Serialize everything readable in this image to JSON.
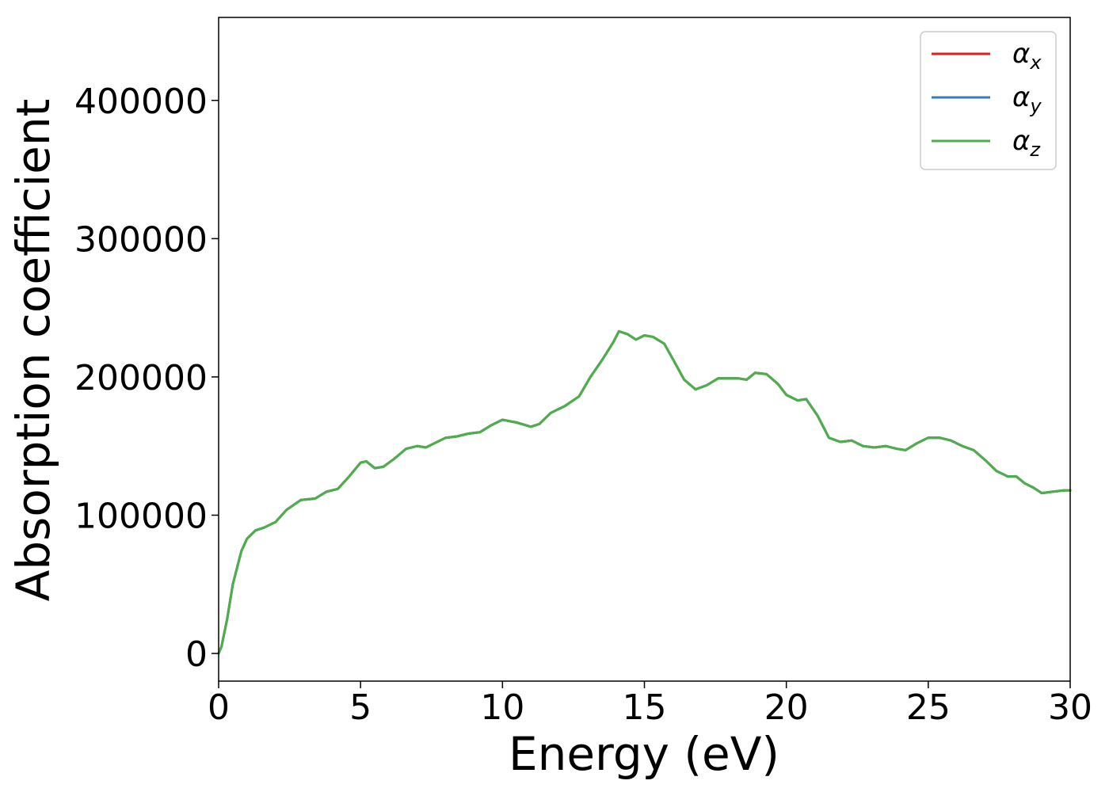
{
  "chart_data": {
    "type": "line",
    "title": "",
    "xlabel": "Energy (eV)",
    "ylabel": "Absorption coefficient",
    "xlim": [
      0,
      30
    ],
    "ylim": [
      -20000,
      460000
    ],
    "xticks": [
      0,
      5,
      10,
      15,
      20,
      25,
      30
    ],
    "xtick_labels": [
      "0",
      "5",
      "10",
      "15",
      "20",
      "25",
      "30"
    ],
    "yticks": [
      0,
      100000,
      200000,
      300000,
      400000
    ],
    "ytick_labels": [
      "0",
      "100000",
      "200000",
      "300000",
      "400000"
    ],
    "grid": false,
    "legend": {
      "position": "top-right"
    },
    "series": [
      {
        "name": "αx",
        "symbol": "α",
        "subscript": "x",
        "color": "#e41a1c"
      },
      {
        "name": "αy",
        "symbol": "α",
        "subscript": "y",
        "color": "#377eb8"
      },
      {
        "name": "αz",
        "symbol": "α",
        "subscript": "z",
        "color": "#4daf4a"
      }
    ],
    "x": [
      0,
      0.1,
      0.3,
      0.5,
      0.8,
      1.0,
      1.3,
      1.6,
      2.0,
      2.4,
      2.9,
      3.4,
      3.8,
      4.2,
      4.6,
      5.0,
      5.2,
      5.5,
      5.8,
      6.2,
      6.6,
      7.0,
      7.3,
      7.6,
      8.0,
      8.4,
      8.8,
      9.2,
      9.6,
      10.0,
      10.5,
      11.0,
      11.3,
      11.7,
      12.2,
      12.7,
      13.1,
      13.5,
      13.9,
      14.1,
      14.4,
      14.7,
      15.0,
      15.3,
      15.7,
      16.0,
      16.4,
      16.8,
      17.2,
      17.6,
      18.0,
      18.3,
      18.6,
      18.9,
      19.3,
      19.7,
      20.0,
      20.4,
      20.7,
      21.1,
      21.5,
      21.9,
      22.3,
      22.7,
      23.1,
      23.5,
      23.9,
      24.2,
      24.6,
      25.0,
      25.4,
      25.8,
      26.2,
      26.6,
      27.0,
      27.4,
      27.8,
      28.1,
      28.4,
      28.7,
      29.0,
      29.4,
      29.8,
      30.0
    ],
    "y": [
      0,
      5000,
      25000,
      50000,
      74000,
      83000,
      89000,
      91000,
      95000,
      104000,
      111000,
      112000,
      117000,
      119000,
      128000,
      138000,
      139000,
      134000,
      135000,
      141000,
      148000,
      150000,
      149000,
      152000,
      156000,
      157000,
      159000,
      160000,
      165000,
      169000,
      167000,
      164000,
      166000,
      174000,
      179000,
      186000,
      200000,
      212000,
      225000,
      233000,
      231000,
      227000,
      230000,
      229000,
      224000,
      213000,
      198000,
      191000,
      194000,
      199000,
      199000,
      199000,
      198000,
      203000,
      202000,
      195000,
      187000,
      183000,
      184000,
      172000,
      156000,
      153000,
      154000,
      150000,
      149000,
      150000,
      148000,
      147000,
      152000,
      156000,
      156000,
      154000,
      150000,
      147000,
      140000,
      132000,
      128000,
      128000,
      123000,
      120000,
      116000,
      117000,
      118000,
      118000
    ]
  }
}
